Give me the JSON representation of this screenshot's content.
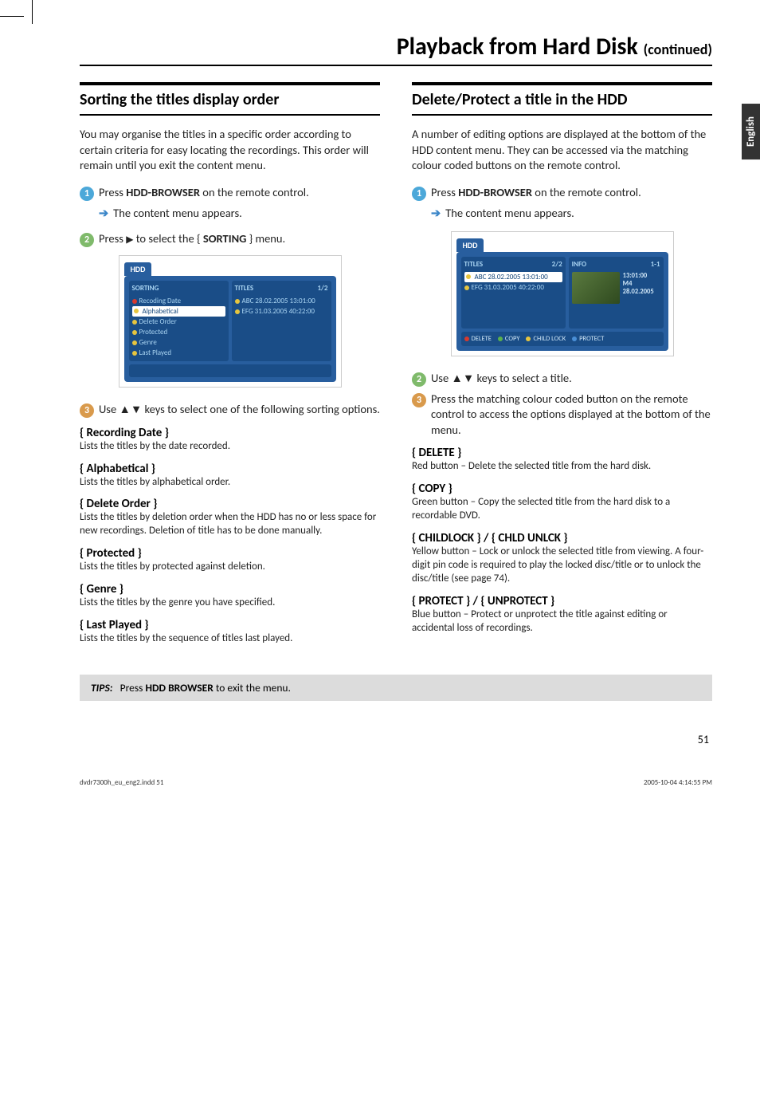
{
  "page": {
    "title_main": "Playback from Hard Disk ",
    "title_cont": "(continued)",
    "english_tab": "English",
    "page_number": "51"
  },
  "left": {
    "heading": "Sorting the titles display order",
    "intro": "You may organise the titles in a specific order according to certain criteria for easy locating the recordings. This order will remain until you exit the content menu.",
    "step1_a": "Press ",
    "step1_b": "HDD-BROWSER",
    "step1_c": " on the remote control.",
    "sub1": "The content menu appears.",
    "step2_a": "Press ",
    "step2_b": " to select the { ",
    "step2_c": "SORTING",
    "step2_d": " } menu.",
    "step3": "Use ▲▼ keys to select one of the following sorting options.",
    "opts": [
      {
        "t": "{ Recording Date }",
        "d": "Lists the titles by the date recorded."
      },
      {
        "t": "{ Alphabetical }",
        "d": "Lists the titles by alphabetical order."
      },
      {
        "t": "{ Delete Order }",
        "d": "Lists the titles by deletion order when the HDD has no or less space for new recordings. Deletion of title has to be done manually."
      },
      {
        "t": "{ Protected }",
        "d": "Lists the titles by protected against deletion."
      },
      {
        "t": "{ Genre }",
        "d": "Lists the titles by the genre you have specified."
      },
      {
        "t": "{ Last Played }",
        "d": "Lists the titles by the sequence of titles last played."
      }
    ],
    "ui": {
      "hdd": "HDD",
      "sorting": "SORTING",
      "titles": "TITLES",
      "count": "1/2",
      "items": [
        "Recoding Date",
        "Alphabetical",
        "Delete Order",
        "Protected",
        "Genre",
        "Last Played"
      ],
      "t1": "ABC 28.02.2005   13:01:00",
      "t2": "EFG 31.03.2005   40:22:00"
    }
  },
  "right": {
    "heading": "Delete/Protect a title in the HDD",
    "intro": "A number of editing options are displayed at the bottom of the HDD content menu. They can be accessed via the matching colour coded buttons on the remote control.",
    "step1_a": "Press ",
    "step1_b": "HDD-BROWSER",
    "step1_c": " on the remote control.",
    "sub1": "The content menu appears.",
    "step2": "Use ▲▼ keys to select a title.",
    "step3": "Press the matching colour coded button on the remote control to access the options displayed at the bottom of the menu.",
    "opts": [
      {
        "t": "{ DELETE }",
        "d": "Red button – Delete the selected title from the hard disk."
      },
      {
        "t": "{ COPY }",
        "d": "Green button – Copy the selected title from the hard disk to a recordable DVD."
      },
      {
        "t": "{ CHILDLOCK } / { CHLD UNLCK }",
        "d": "Yellow button – Lock or unlock the selected title from viewing.  A four-digit pin code is required to play the locked disc/title or to unlock the disc/title (see page 74)."
      },
      {
        "t": "{ PROTECT } / { UNPROTECT }",
        "d": "Blue button – Protect or unprotect the title against editing or accidental loss of recordings."
      }
    ],
    "ui": {
      "hdd": "HDD",
      "titles": "TITLES",
      "tcount": "2/2",
      "info": "INFO",
      "icount": "1-1",
      "t1": "ABC 28.02.2005   13:01:00",
      "t2": "EFG 31.03.2005   40:22:00",
      "i1": "13:01:00",
      "i2": "M4",
      "i3": "28.02.2005",
      "b_delete": "DELETE",
      "b_copy": "COPY",
      "b_child": "CHILD LOCK",
      "b_protect": "PROTECT"
    }
  },
  "tips": {
    "label": "TIPS:",
    "a": "Press ",
    "b": "HDD BROWSER",
    "c": " to exit the menu."
  },
  "footer": {
    "left": "dvdr7300h_eu_eng2.indd   51",
    "right": "2005-10-04   4:14:55 PM"
  }
}
